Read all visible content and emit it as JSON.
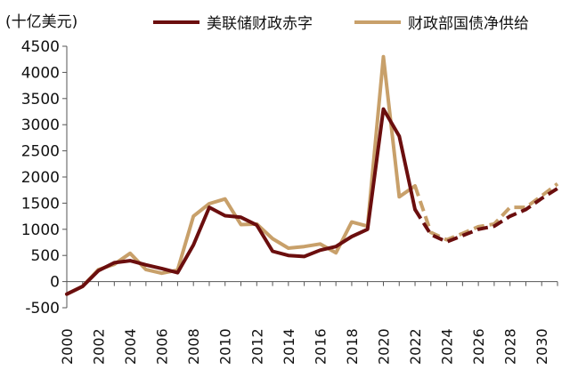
{
  "chart_data": {
    "type": "line",
    "ylabel": "(十亿美元)",
    "ylim": [
      -500,
      4500
    ],
    "yticks": [
      -500,
      0,
      500,
      1000,
      1500,
      2000,
      2500,
      3000,
      3500,
      4000,
      4500
    ],
    "ytick_labels": [
      "-500",
      "0",
      "500",
      "1000",
      "1500",
      "2000",
      "2500",
      "3000",
      "3500",
      "4000",
      "4500"
    ],
    "xlim": [
      2000,
      2031
    ],
    "xticks": [
      2000,
      2002,
      2004,
      2006,
      2008,
      2010,
      2012,
      2014,
      2016,
      2018,
      2020,
      2022,
      2024,
      2026,
      2028,
      2030
    ],
    "xtick_labels": [
      "2000",
      "2002",
      "2004",
      "2006",
      "2008",
      "2010",
      "2012",
      "2014",
      "2016",
      "2018",
      "2020",
      "2022",
      "2024",
      "2026",
      "2028",
      "2030"
    ],
    "legend_position": "top",
    "projection_start": 2022,
    "series": [
      {
        "name": "美联储财政赤字",
        "color": "#6b0e0e",
        "x": [
          2000,
          2001,
          2002,
          2003,
          2004,
          2005,
          2006,
          2007,
          2008,
          2009,
          2010,
          2011,
          2012,
          2013,
          2014,
          2015,
          2016,
          2017,
          2018,
          2019,
          2020,
          2021,
          2022,
          2023,
          2024,
          2025,
          2026,
          2027,
          2028,
          2029,
          2030,
          2031
        ],
        "values": [
          -240,
          -90,
          210,
          360,
          400,
          320,
          250,
          170,
          700,
          1420,
          1260,
          1230,
          1080,
          580,
          500,
          480,
          600,
          670,
          860,
          1000,
          3300,
          2780,
          1380,
          900,
          760,
          880,
          1000,
          1060,
          1250,
          1380,
          1590,
          1780
        ]
      },
      {
        "name": "财政部国债净供给",
        "color": "#c8a06a",
        "x": [
          2000,
          2001,
          2002,
          2003,
          2004,
          2005,
          2006,
          2007,
          2008,
          2009,
          2010,
          2011,
          2012,
          2013,
          2014,
          2015,
          2016,
          2017,
          2018,
          2019,
          2020,
          2021,
          2022,
          2023,
          2024,
          2025,
          2026,
          2027,
          2028,
          2029,
          2030,
          2031
        ],
        "values": [
          -240,
          -90,
          230,
          330,
          540,
          230,
          160,
          220,
          1250,
          1490,
          1580,
          1090,
          1100,
          820,
          640,
          670,
          720,
          550,
          1140,
          1060,
          4300,
          1620,
          1830,
          940,
          800,
          920,
          1050,
          1100,
          1420,
          1420,
          1640,
          1870
        ]
      }
    ]
  }
}
